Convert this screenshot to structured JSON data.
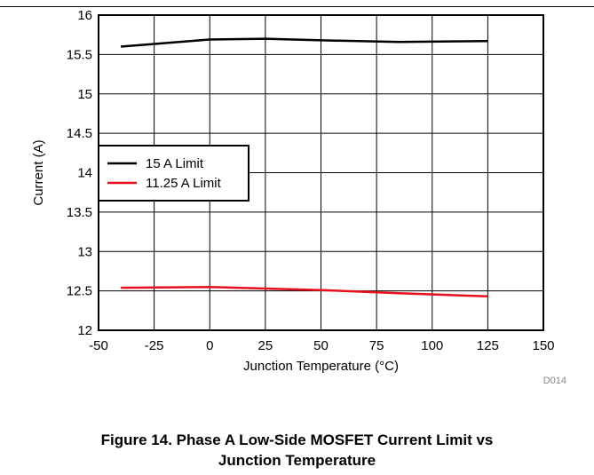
{
  "figure": {
    "caption_line1": "Figure 14. Phase A Low-Side MOSFET Current Limit vs",
    "caption_line2": "Junction Temperature",
    "figure_id": "D014"
  },
  "chart_data": {
    "type": "line",
    "title": "",
    "xlabel": "Junction Temperature (°C)",
    "ylabel": "Current (A)",
    "xlim": [
      -50,
      150
    ],
    "ylim": [
      12,
      16
    ],
    "xticks": [
      "-50",
      "-25",
      "0",
      "25",
      "50",
      "75",
      "100",
      "125",
      "150"
    ],
    "yticks": [
      "12",
      "12.5",
      "13",
      "13.5",
      "14",
      "14.5",
      "15",
      "15.5",
      "16"
    ],
    "grid": true,
    "legend_position": "left-middle",
    "series": [
      {
        "name": "15 A Limit",
        "color": "#000000",
        "x": [
          -40,
          0,
          25,
          50,
          85,
          125
        ],
        "y": [
          15.6,
          15.69,
          15.7,
          15.68,
          15.66,
          15.67
        ]
      },
      {
        "name": "11.25 A Limit",
        "color": "#e8101c",
        "x": [
          -40,
          0,
          25,
          50,
          85,
          125
        ],
        "y": [
          12.54,
          12.55,
          12.53,
          12.51,
          12.47,
          12.43
        ]
      }
    ]
  }
}
